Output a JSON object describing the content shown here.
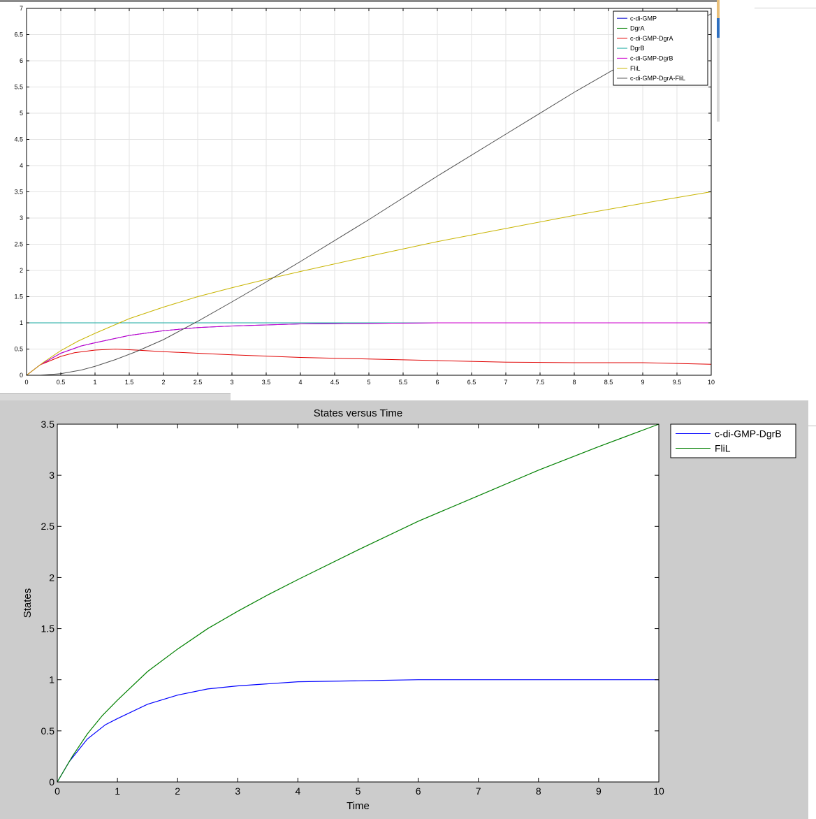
{
  "chart_data": [
    {
      "type": "line",
      "title": "",
      "xlabel": "",
      "ylabel": "",
      "xlim": [
        0,
        10
      ],
      "ylim": [
        0,
        7
      ],
      "grid": true,
      "legend_position": "top-right",
      "x_ticks": [
        "0",
        "0.5",
        "1",
        "1.5",
        "2",
        "2.5",
        "3",
        "3.5",
        "4",
        "4.5",
        "5",
        "5.5",
        "6",
        "6.5",
        "7",
        "7.5",
        "8",
        "8.5",
        "9",
        "9.5",
        "10"
      ],
      "y_ticks": [
        "0",
        "0.5",
        "1",
        "1.5",
        "2",
        "2.5",
        "3",
        "3.5",
        "4",
        "4.5",
        "5",
        "5.5",
        "6",
        "6.5",
        "7"
      ],
      "series": [
        {
          "name": "c-di-GMP",
          "color": "#0000cc",
          "x": [
            0,
            0.2,
            0.5,
            0.8,
            1,
            1.5,
            2,
            2.5,
            3,
            3.5,
            4,
            5,
            6,
            7,
            8,
            9,
            10
          ],
          "y": [
            0,
            0.2,
            0.42,
            0.56,
            0.62,
            0.76,
            0.85,
            0.91,
            0.94,
            0.96,
            0.98,
            0.99,
            1.0,
            1.0,
            1.0,
            1.0,
            1.0
          ]
        },
        {
          "name": "DgrA",
          "color": "#008000",
          "x": [
            0,
            10
          ],
          "y": [
            0,
            0
          ]
        },
        {
          "name": "c-di-GMP-DgrA",
          "color": "#e00000",
          "x": [
            0,
            0.2,
            0.5,
            0.7,
            1,
            1.3,
            1.6,
            2,
            2.5,
            3,
            4,
            5,
            6,
            7,
            8,
            9,
            10
          ],
          "y": [
            0,
            0.2,
            0.36,
            0.43,
            0.48,
            0.5,
            0.48,
            0.45,
            0.42,
            0.39,
            0.34,
            0.31,
            0.28,
            0.25,
            0.24,
            0.24,
            0.21
          ]
        },
        {
          "name": "DgrB",
          "color": "#1aaaa0",
          "x": [
            0,
            10
          ],
          "y": [
            1,
            1
          ]
        },
        {
          "name": "c-di-GMP-DgrB",
          "color": "#cc00cc",
          "x": [
            0,
            0.2,
            0.5,
            0.8,
            1,
            1.5,
            2,
            2.5,
            3,
            3.5,
            4,
            5,
            6,
            7,
            8,
            9,
            10
          ],
          "y": [
            0,
            0.2,
            0.42,
            0.56,
            0.62,
            0.76,
            0.85,
            0.91,
            0.94,
            0.96,
            0.98,
            0.99,
            1.0,
            1.0,
            1.0,
            1.0,
            1.0
          ]
        },
        {
          "name": "FliL",
          "color": "#c8b400",
          "x": [
            0,
            0.25,
            0.5,
            0.75,
            1,
            1.5,
            2,
            2.5,
            3,
            3.5,
            4,
            5,
            6,
            7,
            8,
            9,
            10
          ],
          "y": [
            0,
            0.25,
            0.47,
            0.65,
            0.8,
            1.08,
            1.3,
            1.5,
            1.67,
            1.83,
            1.98,
            2.27,
            2.55,
            2.8,
            3.05,
            3.28,
            3.5
          ]
        },
        {
          "name": "c-di-GMP-DgrA-FliL",
          "color": "#505050",
          "x": [
            0.2,
            0.5,
            0.8,
            1,
            1.3,
            1.6,
            2,
            2.5,
            3,
            3.5,
            4,
            5,
            6,
            7,
            8,
            9,
            10
          ],
          "y": [
            0,
            0.03,
            0.1,
            0.17,
            0.3,
            0.45,
            0.68,
            1.03,
            1.4,
            1.78,
            2.17,
            2.97,
            3.8,
            4.6,
            5.4,
            6.15,
            6.9
          ]
        }
      ]
    },
    {
      "type": "line",
      "title": "States versus Time",
      "xlabel": "Time",
      "ylabel": "States",
      "xlim": [
        0,
        10
      ],
      "ylim": [
        0,
        3.5
      ],
      "grid": false,
      "legend_position": "outside-right",
      "x_ticks": [
        "0",
        "1",
        "2",
        "3",
        "4",
        "5",
        "6",
        "7",
        "8",
        "9",
        "10"
      ],
      "y_ticks": [
        "0",
        "0.5",
        "1",
        "1.5",
        "2",
        "2.5",
        "3",
        "3.5"
      ],
      "series": [
        {
          "name": "c-di-GMP-DgrB",
          "color": "#0000ff",
          "x": [
            0,
            0.2,
            0.5,
            0.8,
            1,
            1.5,
            2,
            2.5,
            3,
            3.5,
            4,
            5,
            6,
            7,
            8,
            9,
            10
          ],
          "y": [
            0,
            0.2,
            0.42,
            0.56,
            0.62,
            0.76,
            0.85,
            0.91,
            0.94,
            0.96,
            0.98,
            0.99,
            1.0,
            1.0,
            1.0,
            1.0,
            1.0
          ]
        },
        {
          "name": "FliL",
          "color": "#008000",
          "x": [
            0,
            0.25,
            0.5,
            0.75,
            1,
            1.5,
            2,
            2.5,
            3,
            3.5,
            4,
            5,
            6,
            7,
            8,
            9,
            10
          ],
          "y": [
            0,
            0.25,
            0.47,
            0.65,
            0.8,
            1.08,
            1.3,
            1.5,
            1.67,
            1.83,
            1.98,
            2.27,
            2.55,
            2.8,
            3.05,
            3.28,
            3.5
          ]
        }
      ]
    }
  ]
}
